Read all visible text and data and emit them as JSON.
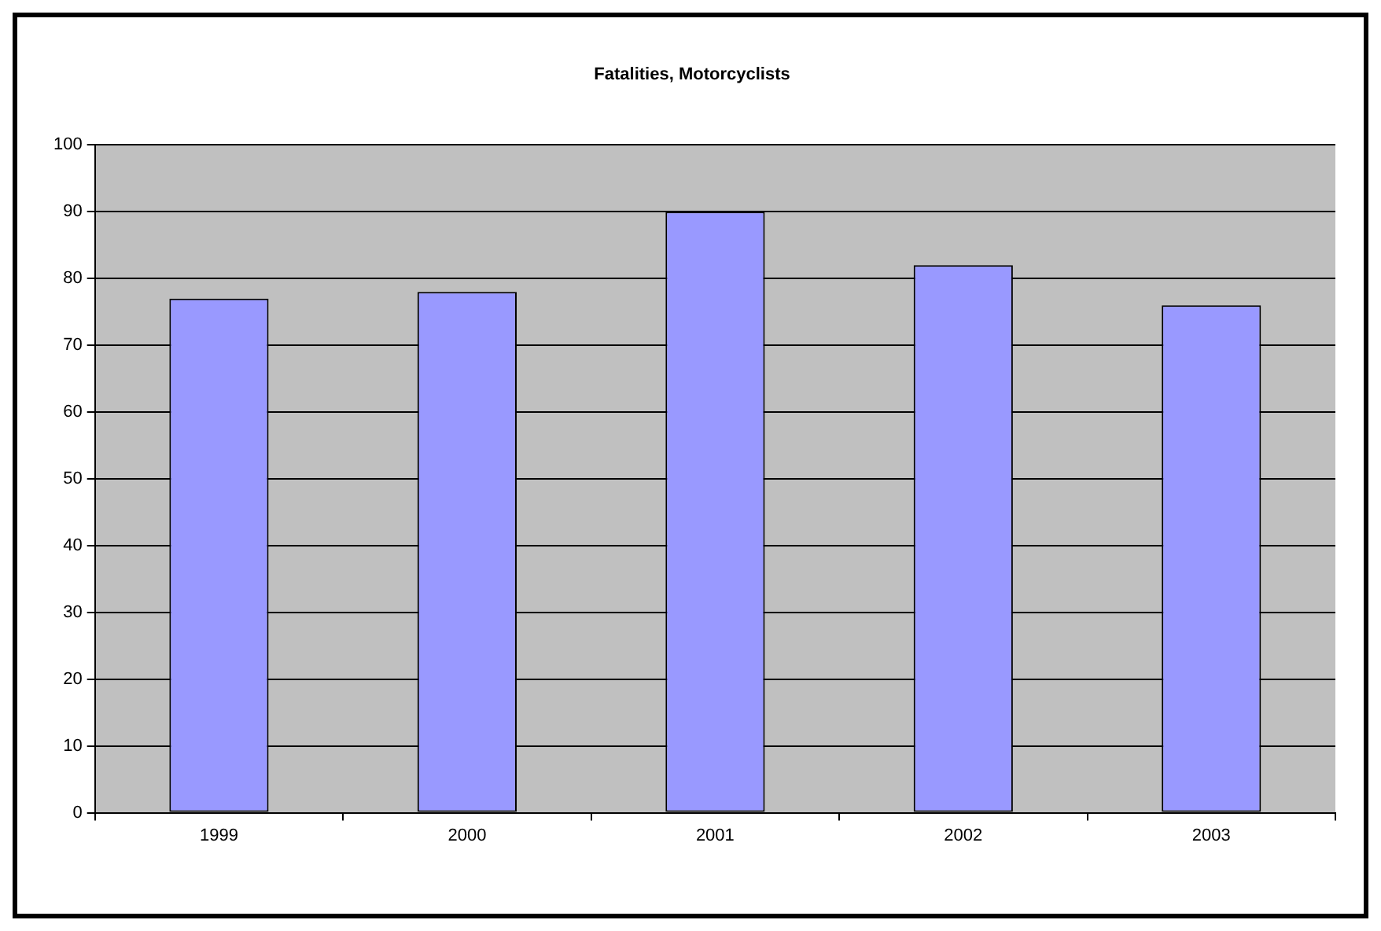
{
  "chart_data": {
    "type": "bar",
    "title": "Fatalities, Motorcyclists",
    "categories": [
      "1999",
      "2000",
      "2001",
      "2002",
      "2003"
    ],
    "values": [
      77,
      78,
      90,
      82,
      76
    ],
    "color": "#9999ff",
    "ylim": [
      0,
      100
    ],
    "yticks": [
      0,
      10,
      20,
      30,
      40,
      50,
      60,
      70,
      80,
      90,
      100
    ],
    "grid": "y",
    "legend": false
  }
}
